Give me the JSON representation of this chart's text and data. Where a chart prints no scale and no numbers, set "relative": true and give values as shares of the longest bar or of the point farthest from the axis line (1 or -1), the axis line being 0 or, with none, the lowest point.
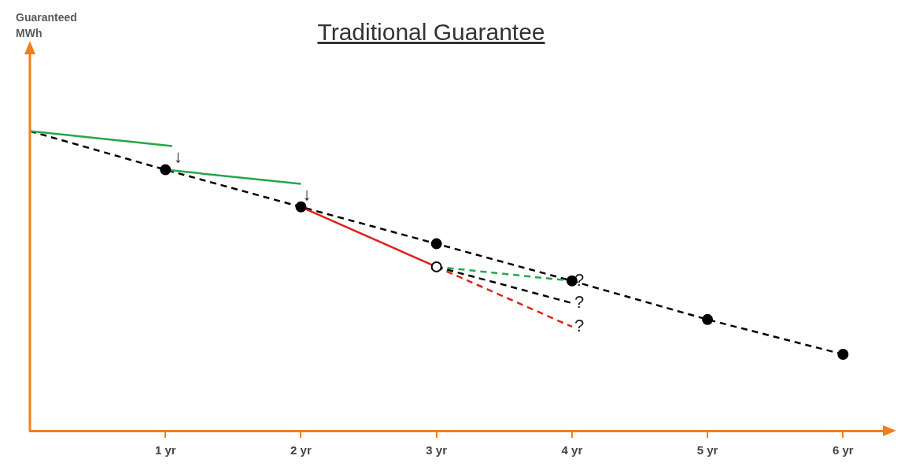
{
  "chart_data": {
    "type": "line",
    "title": "Traditional Guarantee",
    "relative": true,
    "legend": false,
    "grid": false,
    "tick_labels": "x",
    "xlim": [
      0,
      6.3
    ],
    "xticks": [
      {
        "value": 1,
        "label": "1 yr"
      },
      {
        "value": 2,
        "label": "2 yr"
      },
      {
        "value": 3,
        "label": "3 yr"
      },
      {
        "value": 4,
        "label": "4 yr"
      },
      {
        "value": 5,
        "label": "5 yr"
      },
      {
        "value": 6,
        "label": "6 yr"
      }
    ],
    "series": [
      {
        "type": "line",
        "color": "#000000",
        "line_style": "dashed",
        "marker": "none",
        "x": [
          0,
          1,
          2,
          3,
          4,
          5,
          6
        ],
        "values": [
          1,
          0.871,
          0.747,
          0.624,
          0.5,
          0.371,
          0.255
        ]
      },
      {
        "type": "line",
        "color": "#22a84a",
        "line_style": "solid",
        "marker": "none",
        "x": [
          0,
          1.05
        ],
        "values": [
          1,
          0.95
        ]
      },
      {
        "type": "line",
        "color": "#22a84a",
        "line_style": "solid",
        "marker": "none",
        "x": [
          1,
          2
        ],
        "values": [
          0.871,
          0.824
        ]
      },
      {
        "type": "line",
        "color": "#e0201b",
        "line_style": "solid",
        "marker": "none",
        "x": [
          2,
          3
        ],
        "values": [
          0.747,
          0.547
        ]
      },
      {
        "type": "line",
        "color": "#22a84a",
        "line_style": "dashed",
        "marker": "none",
        "x": [
          3,
          4
        ],
        "values": [
          0.547,
          0.5
        ]
      },
      {
        "type": "line",
        "color": "#000000",
        "line_style": "dashed",
        "marker": "none",
        "x": [
          3,
          4
        ],
        "values": [
          0.547,
          0.426
        ]
      },
      {
        "type": "line",
        "color": "#e0201b",
        "line_style": "dashed",
        "marker": "none",
        "x": [
          3,
          4
        ],
        "values": [
          0.547,
          0.347
        ]
      },
      {
        "type": "scatter",
        "color": "#000000",
        "marker": "circle",
        "x": [
          1,
          2,
          3,
          4,
          5,
          6
        ],
        "values": [
          0.871,
          0.747,
          0.624,
          0.5,
          0.371,
          0.255
        ]
      },
      {
        "type": "scatter",
        "color": "#ffffff",
        "marker": "circle",
        "x": [
          3
        ],
        "values": [
          0.547
        ]
      }
    ],
    "annotations": [
      "Guaranteed MWh",
      {
        "text": "?",
        "x": 4,
        "y": 0.5
      },
      {
        "text": "?",
        "x": 4,
        "y": 0.426
      },
      {
        "text": "?",
        "x": 4,
        "y": 0.347
      },
      {
        "text": "↓",
        "x": 1.05,
        "y": 0.95
      },
      {
        "text": "↓",
        "x": 2,
        "y": 0.824
      }
    ]
  }
}
